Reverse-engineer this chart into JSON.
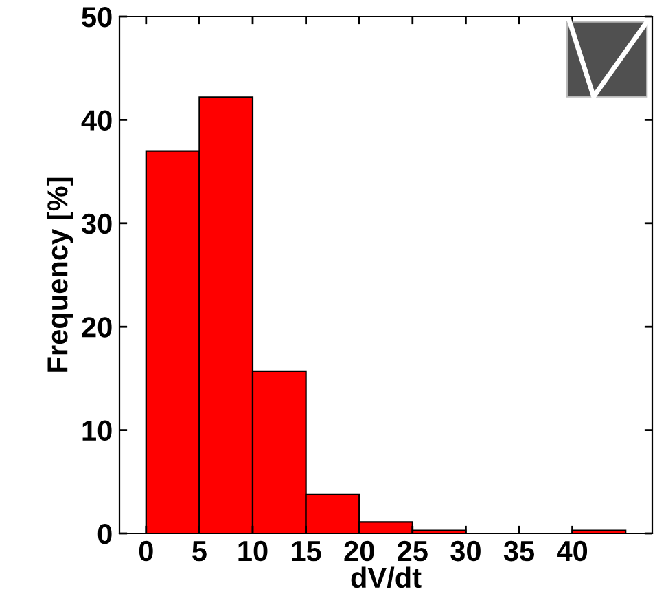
{
  "chart_data": {
    "type": "histogram",
    "xlabel": "dV/dt",
    "ylabel": "Frequency [%]",
    "bins": [
      0,
      5,
      10,
      15,
      20,
      25,
      30,
      35,
      40,
      45
    ],
    "values": [
      37.0,
      42.2,
      15.7,
      3.8,
      1.1,
      0.3,
      0,
      0,
      0.3
    ],
    "color": "#ff0000",
    "xlim": [
      -2.5,
      47.5
    ],
    "xticks": [
      0,
      5,
      10,
      15,
      20,
      25,
      30,
      35,
      40
    ],
    "ylim": [
      0,
      50
    ],
    "yticks": [
      0,
      10,
      20,
      30,
      40,
      50
    ],
    "grid": false
  }
}
